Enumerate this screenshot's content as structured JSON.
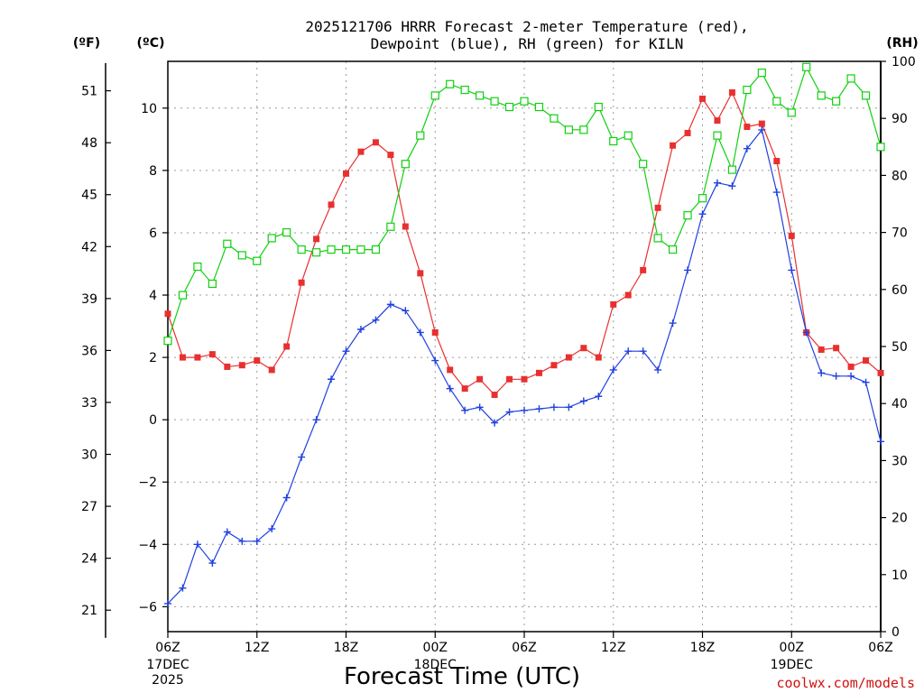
{
  "chart_data": {
    "type": "line",
    "title_lines": [
      "2025121706 HRRR Forecast 2-meter Temperature (red),",
      "Dewpoint (blue), RH (green) for KILN"
    ],
    "xlabel": "Forecast Time (UTC)",
    "credit": "coolwx.com/models",
    "unit_labels": {
      "fahrenheit": "(ºF)",
      "celsius": "(ºC)",
      "rh": "(RH)"
    },
    "x_range": [
      0,
      48
    ],
    "x_ticks": [
      {
        "x": 0,
        "label": "06Z",
        "sub1": "17DEC",
        "sub2": "2025"
      },
      {
        "x": 6,
        "label": "12Z",
        "sub1": "",
        "sub2": ""
      },
      {
        "x": 12,
        "label": "18Z",
        "sub1": "",
        "sub2": ""
      },
      {
        "x": 18,
        "label": "00Z",
        "sub1": "18DEC",
        "sub2": ""
      },
      {
        "x": 24,
        "label": "06Z",
        "sub1": "",
        "sub2": ""
      },
      {
        "x": 30,
        "label": "12Z",
        "sub1": "",
        "sub2": ""
      },
      {
        "x": 36,
        "label": "18Z",
        "sub1": "",
        "sub2": ""
      },
      {
        "x": 42,
        "label": "00Z",
        "sub1": "19DEC",
        "sub2": ""
      },
      {
        "x": 48,
        "label": "06Z",
        "sub1": "",
        "sub2": ""
      }
    ],
    "y_celsius": {
      "range": [
        -6.8,
        11.5
      ],
      "ticks": [
        -6,
        -4,
        -2,
        0,
        2,
        4,
        6,
        8,
        10
      ]
    },
    "y_fahrenheit": {
      "ticks": [
        21,
        24,
        27,
        30,
        33,
        36,
        39,
        42,
        45,
        48,
        51
      ]
    },
    "y_rh": {
      "range": [
        0,
        100
      ],
      "ticks": [
        0,
        10,
        20,
        30,
        40,
        50,
        60,
        70,
        80,
        90,
        100
      ]
    },
    "series": [
      {
        "name": "Temperature",
        "color": "#e83030",
        "marker": "filled-square",
        "axis": "celsius",
        "values": [
          3.4,
          2.0,
          2.0,
          2.1,
          1.7,
          1.75,
          1.9,
          1.6,
          2.35,
          4.4,
          5.8,
          6.9,
          7.9,
          8.6,
          8.9,
          8.5,
          6.2,
          4.7,
          2.8,
          1.6,
          1.0,
          1.3,
          0.8,
          1.3,
          1.3,
          1.5,
          1.75,
          2.0,
          2.3,
          2.0,
          3.7,
          4.0,
          4.8,
          6.8,
          8.8,
          9.2,
          10.3,
          9.6,
          10.5,
          9.4,
          9.5,
          8.3,
          5.9,
          2.8,
          2.25,
          2.3,
          1.7,
          1.9,
          1.5
        ]
      },
      {
        "name": "Dewpoint",
        "color": "#2040e0",
        "marker": "plus",
        "axis": "celsius",
        "values": [
          -5.9,
          -5.4,
          -4.0,
          -4.6,
          -3.6,
          -3.9,
          -3.9,
          -3.5,
          -2.5,
          -1.2,
          0.0,
          1.3,
          2.2,
          2.9,
          3.2,
          3.7,
          3.5,
          2.8,
          1.9,
          1.0,
          0.3,
          0.4,
          -0.1,
          0.25,
          0.3,
          0.35,
          0.4,
          0.4,
          0.6,
          0.75,
          1.6,
          2.2,
          2.2,
          1.6,
          3.1,
          4.8,
          6.6,
          7.6,
          7.5,
          8.7,
          9.3,
          7.3,
          4.8,
          2.8,
          1.5,
          1.4,
          1.4,
          1.2,
          -0.7
        ]
      },
      {
        "name": "RH",
        "color": "#10d010",
        "marker": "open-square",
        "axis": "rh",
        "values": [
          51,
          59,
          64,
          61,
          68,
          66,
          65,
          69,
          70,
          67,
          66.5,
          67,
          67,
          67,
          67,
          71,
          82,
          87,
          94,
          96,
          95,
          94,
          93,
          92,
          93,
          92,
          90,
          88,
          88,
          92,
          86,
          87,
          82,
          69,
          67,
          73,
          76,
          87,
          81,
          95,
          98,
          93,
          91,
          99,
          94,
          93,
          97,
          94,
          85
        ]
      }
    ]
  }
}
